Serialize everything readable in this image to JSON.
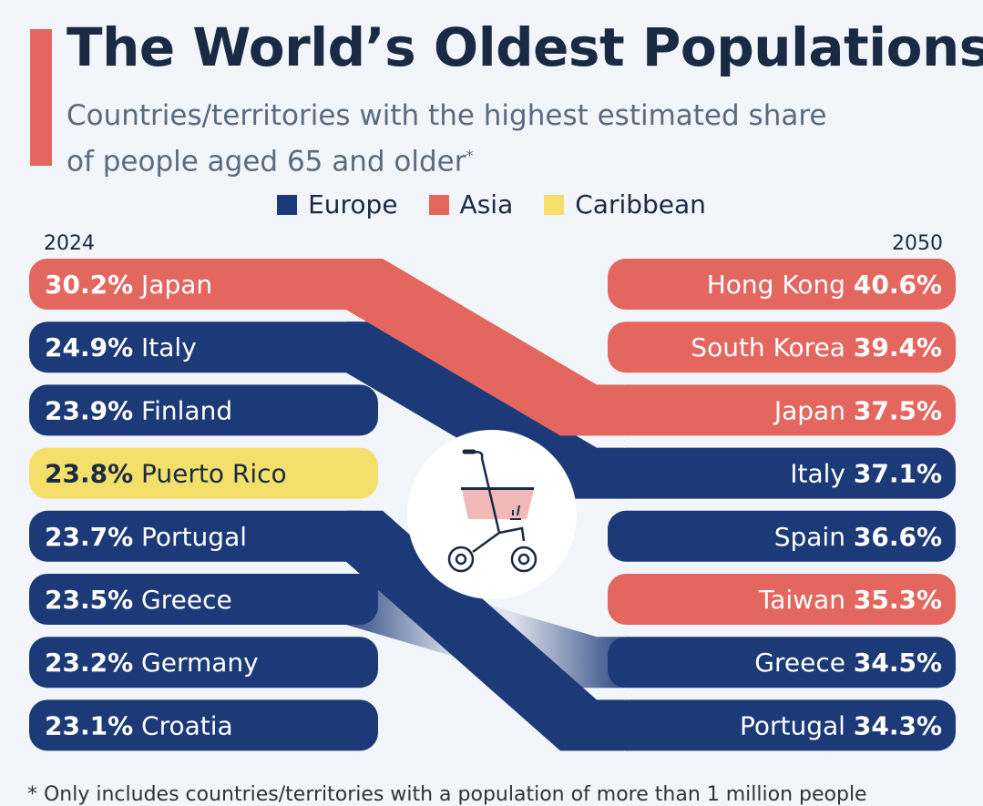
{
  "title": "The World’s Oldest Populations",
  "subtitle_line1": "Countries/territories with the highest estimated share",
  "subtitle_line2": "of people aged 65 and older",
  "subtitle_mark": "*",
  "legend": [
    {
      "label": "Europe",
      "color": "#1d3a78"
    },
    {
      "label": "Asia",
      "color": "#e4675f"
    },
    {
      "label": "Caribbean",
      "color": "#f4df6b"
    }
  ],
  "footnote": "* Only includes countries/territories with a population of more than 1 million people",
  "chart_data": {
    "type": "slope",
    "title": "The World’s Oldest Populations",
    "unit": "% of population aged 65+",
    "left_label": "2024",
    "right_label": "2050",
    "left": [
      {
        "name": "Japan",
        "value": 30.2,
        "region": "Asia"
      },
      {
        "name": "Italy",
        "value": 24.9,
        "region": "Europe"
      },
      {
        "name": "Finland",
        "value": 23.9,
        "region": "Europe"
      },
      {
        "name": "Puerto Rico",
        "value": 23.8,
        "region": "Caribbean"
      },
      {
        "name": "Portugal",
        "value": 23.7,
        "region": "Europe"
      },
      {
        "name": "Greece",
        "value": 23.5,
        "region": "Europe"
      },
      {
        "name": "Germany",
        "value": 23.2,
        "region": "Europe"
      },
      {
        "name": "Croatia",
        "value": 23.1,
        "region": "Europe"
      }
    ],
    "right": [
      {
        "name": "Hong Kong",
        "value": 40.6,
        "region": "Asia"
      },
      {
        "name": "South Korea",
        "value": 39.4,
        "region": "Asia"
      },
      {
        "name": "Japan",
        "value": 37.5,
        "region": "Asia"
      },
      {
        "name": "Italy",
        "value": 37.1,
        "region": "Europe"
      },
      {
        "name": "Spain",
        "value": 36.6,
        "region": "Europe"
      },
      {
        "name": "Taiwan",
        "value": 35.3,
        "region": "Asia"
      },
      {
        "name": "Greece",
        "value": 34.5,
        "region": "Europe"
      },
      {
        "name": "Portugal",
        "value": 34.3,
        "region": "Europe"
      }
    ],
    "flows": [
      {
        "name": "Greece",
        "from_rank": 6,
        "to_rank": 7,
        "faded": true
      },
      {
        "name": "Portugal",
        "from_rank": 5,
        "to_rank": 8,
        "faded": false
      },
      {
        "name": "Italy",
        "from_rank": 2,
        "to_rank": 4,
        "faded": false
      },
      {
        "name": "Japan",
        "from_rank": 1,
        "to_rank": 3,
        "faded": false
      }
    ]
  }
}
